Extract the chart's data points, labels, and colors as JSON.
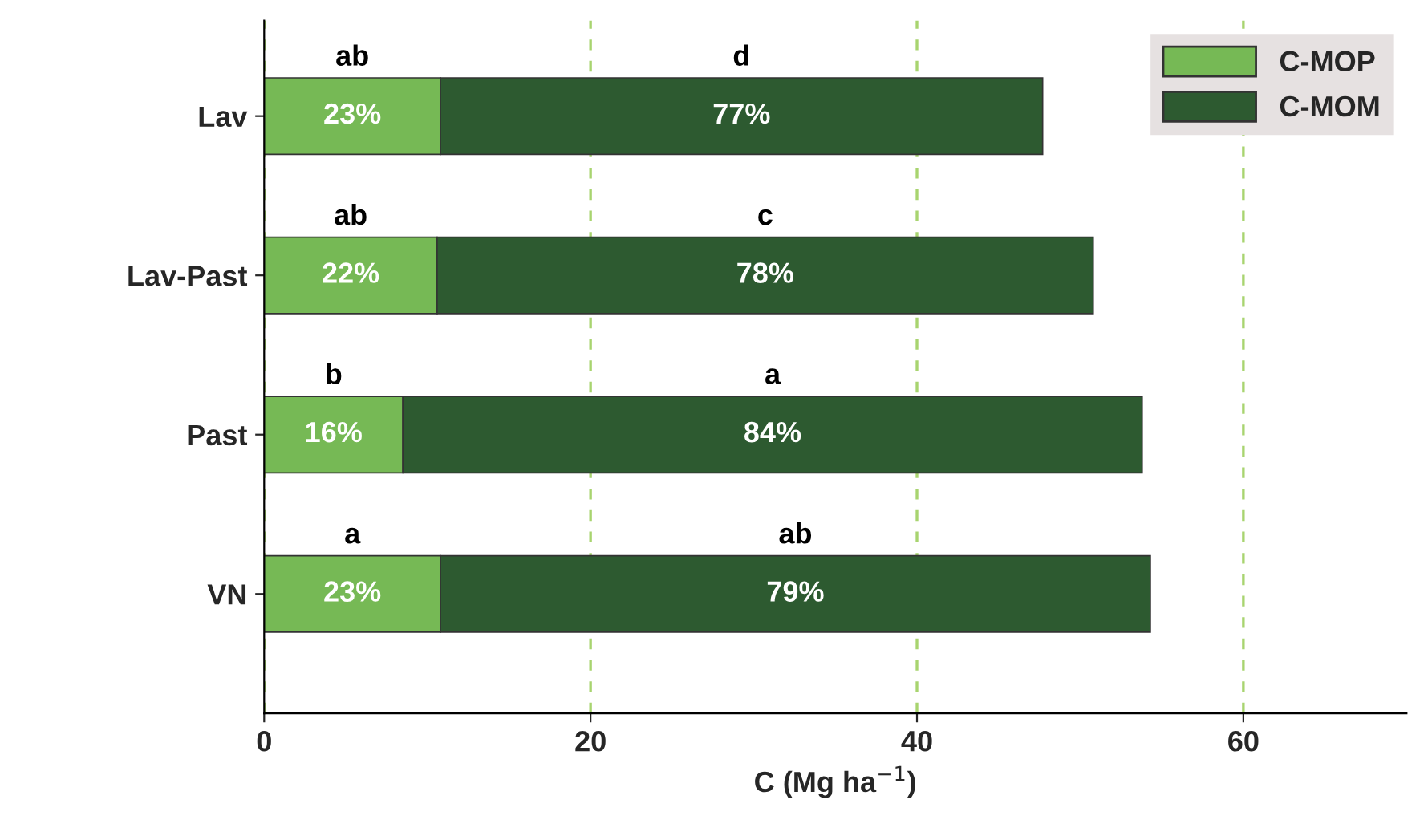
{
  "chart_data": {
    "type": "bar",
    "orientation": "horizontal",
    "stacked": true,
    "xlabel": "C (Mg ha$^{−1}$)",
    "categories": [
      "Lav",
      "Lav-Past",
      "Past",
      "VN"
    ],
    "series": [
      {
        "name": "C-MOP",
        "color": "#76b955",
        "values": [
          10.8,
          10.6,
          8.5,
          10.8
        ]
      },
      {
        "name": "C-MOM",
        "color": "#2d5a30",
        "values": [
          36.9,
          40.2,
          45.3,
          43.5
        ]
      }
    ],
    "xlim": [
      0,
      70
    ],
    "xticks": [
      0,
      20,
      40,
      60
    ],
    "grid": "x",
    "legend": "top right",
    "annotations": [
      "ab",
      "d",
      "ab",
      "c",
      "b",
      "a",
      "a",
      "ab",
      "23%",
      "77%",
      "22%",
      "78%",
      "16%",
      "84%",
      "23%",
      "79%"
    ]
  }
}
